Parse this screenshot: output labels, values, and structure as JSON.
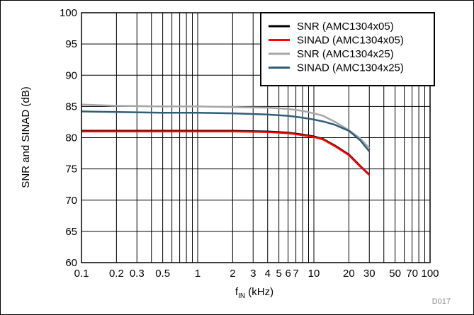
{
  "chart_data": {
    "type": "line",
    "xlabel_main": "f",
    "xlabel_sub": "IN",
    "xlabel_rest": " (kHz)",
    "ylabel": "SNR and SINAD (dB)",
    "x_scale": "log",
    "xlim": [
      0.1,
      100
    ],
    "ylim": [
      60,
      100
    ],
    "grid": true,
    "legend_position": "top-right",
    "x_ticks": [
      0.1,
      0.2,
      0.3,
      0.5,
      1,
      2,
      3,
      4,
      5,
      6,
      7,
      10,
      20,
      30,
      50,
      70,
      100
    ],
    "x_tick_labels": [
      "0.1",
      "0.2",
      "0.3",
      "0.5",
      "1",
      "2",
      "3",
      "4",
      "5",
      "6",
      "7",
      "10",
      "20",
      "30",
      "50",
      "70",
      "100"
    ],
    "y_ticks": [
      60,
      65,
      70,
      75,
      80,
      85,
      90,
      95,
      100
    ],
    "y_tick_labels": [
      "60",
      "65",
      "70",
      "75",
      "80",
      "85",
      "90",
      "95",
      "100"
    ],
    "series": [
      {
        "name": "SNR (AMC1304x05)",
        "color": "#000000",
        "x": [
          0.1,
          0.2,
          0.5,
          1,
          2,
          4,
          6,
          8,
          10,
          12,
          15,
          20,
          25,
          30
        ],
        "y": [
          81.1,
          81.1,
          81.1,
          81.1,
          81.1,
          81.0,
          80.8,
          80.5,
          80.2,
          79.8,
          78.8,
          77.3,
          75.5,
          74.1
        ]
      },
      {
        "name": "SINAD (AMC1304x05)",
        "color": "#ff0000",
        "x": [
          0.1,
          0.2,
          0.5,
          1,
          2,
          4,
          6,
          8,
          10,
          12,
          15,
          20,
          25,
          30
        ],
        "y": [
          81.0,
          81.0,
          81.0,
          81.0,
          81.0,
          80.9,
          80.7,
          80.4,
          80.1,
          79.7,
          78.7,
          77.2,
          75.4,
          74.0
        ]
      },
      {
        "name": "SNR (AMC1304x25)",
        "color": "#a6a6a6",
        "x": [
          0.1,
          0.2,
          0.5,
          1,
          2,
          4,
          6,
          8,
          10,
          12,
          15,
          20,
          25,
          30
        ],
        "y": [
          85.3,
          85.1,
          85.0,
          85.0,
          84.9,
          84.8,
          84.6,
          84.3,
          83.9,
          83.5,
          82.6,
          81.2,
          79.9,
          78.3
        ]
      },
      {
        "name": "SINAD (AMC1304x25)",
        "color": "#2e5f78",
        "x": [
          0.1,
          0.2,
          0.5,
          1,
          2,
          4,
          6,
          8,
          10,
          12,
          15,
          20,
          25,
          30
        ],
        "y": [
          84.2,
          84.1,
          84.0,
          84.0,
          83.9,
          83.7,
          83.5,
          83.2,
          82.9,
          82.6,
          82.1,
          81.1,
          79.6,
          77.8
        ]
      }
    ],
    "annotation": "D017"
  }
}
